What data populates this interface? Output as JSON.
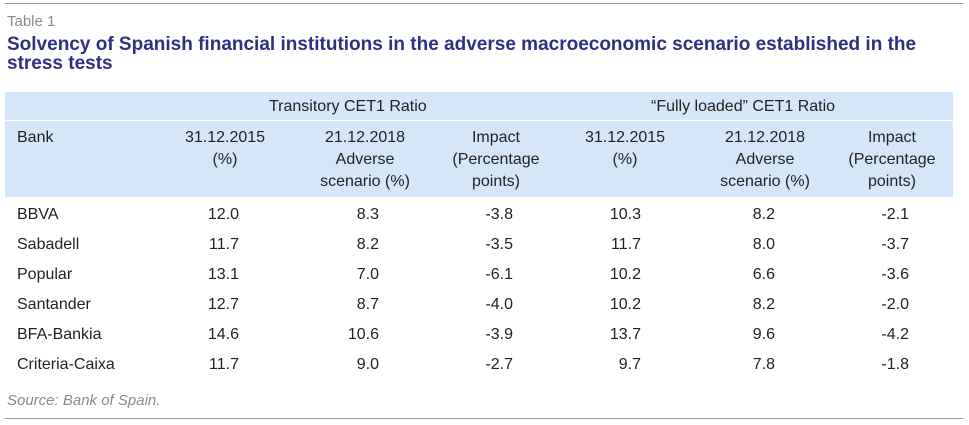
{
  "table_label": "Table 1",
  "title": "Solvency of Spanish financial institutions in the adverse macroeconomic scenario established in the stress tests",
  "groups": {
    "transitory": "Transitory CET1 Ratio",
    "fully_loaded": "“Fully loaded” CET1 Ratio"
  },
  "columns": {
    "bank": "Bank",
    "t_2015": "31.12.2015\n(%)",
    "t_2018": "21.12.2018\nAdverse\nscenario (%)",
    "t_impact": "Impact\n(Percentage\npoints)",
    "f_2015": "31.12.2015\n(%)",
    "f_2018": "21.12.2018\nAdverse\nscenario (%)",
    "f_impact": "Impact\n(Percentage\npoints)"
  },
  "rows": [
    {
      "bank": "BBVA",
      "t_2015": "12.0",
      "t_2018": "8.3",
      "t_impact": "-3.8",
      "f_2015": "10.3",
      "f_2018": "8.2",
      "f_impact": "-2.1"
    },
    {
      "bank": "Sabadell",
      "t_2015": "11.7",
      "t_2018": "8.2",
      "t_impact": "-3.5",
      "f_2015": "11.7",
      "f_2018": "8.0",
      "f_impact": "-3.7"
    },
    {
      "bank": "Popular",
      "t_2015": "13.1",
      "t_2018": "7.0",
      "t_impact": "-6.1",
      "f_2015": "10.2",
      "f_2018": "6.6",
      "f_impact": "-3.6"
    },
    {
      "bank": "Santander",
      "t_2015": "12.7",
      "t_2018": "8.7",
      "t_impact": "-4.0",
      "f_2015": "10.2",
      "f_2018": "8.2",
      "f_impact": "-2.0"
    },
    {
      "bank": "BFA-Bankia",
      "t_2015": "14.6",
      "t_2018": "10.6",
      "t_impact": "-3.9",
      "f_2015": "13.7",
      "f_2018": "9.6",
      "f_impact": "-4.2"
    },
    {
      "bank": "Criteria-Caixa",
      "t_2015": "11.7",
      "t_2018": "9.0",
      "t_impact": "-2.7",
      "f_2015": "9.7",
      "f_2018": "7.8",
      "f_impact": "-1.8"
    }
  ],
  "source": "Source: Bank of Spain.",
  "colors": {
    "title": "#2f2f86",
    "header_band": "#d4e6f8",
    "muted_text": "#8a8a8a"
  }
}
